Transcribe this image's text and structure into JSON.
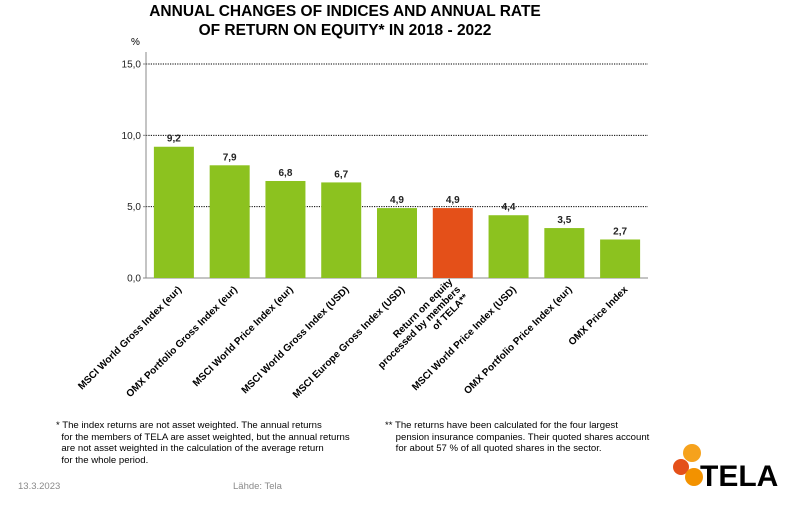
{
  "title_line1": "ANNUAL CHANGES OF INDICES AND ANNUAL RATE",
  "title_line2": "OF RETURN ON EQUITY* IN 2018 - 2022",
  "unit_label": "%",
  "chart_data": {
    "type": "bar",
    "title": "ANNUAL CHANGES OF INDICES AND ANNUAL RATE OF RETURN ON EQUITY* IN 2018 - 2022",
    "xlabel": "",
    "ylabel": "%",
    "ylim": [
      0,
      15
    ],
    "yticks": [
      "0,0",
      "5,0",
      "10,0",
      "15,0"
    ],
    "grid": true,
    "categories": [
      [
        "MSCI World Gross Index (eur)"
      ],
      [
        "OMX Portfolio Gross Index (eur)"
      ],
      [
        "MSCI World Price Index (eur)"
      ],
      [
        "MSCI World Gross Index (USD)"
      ],
      [
        "MSCI Europe Gross Index (USD)"
      ],
      [
        "Return on equity",
        "processed by members",
        "of TELA**"
      ],
      [
        "MSCI World Price Index (USD)"
      ],
      [
        "OMX Portfolio Price Index (eur)"
      ],
      [
        "OMX  Price Index"
      ]
    ],
    "values": [
      9.2,
      7.9,
      6.8,
      6.7,
      4.9,
      4.9,
      4.4,
      3.5,
      2.7
    ],
    "value_labels": [
      "9,2",
      "7,9",
      "6,8",
      "6,7",
      "4,9",
      "4,9",
      "4,4",
      "3,5",
      "2,7"
    ],
    "colors": [
      "#8cc21f",
      "#8cc21f",
      "#8cc21f",
      "#8cc21f",
      "#8cc21f",
      "#e45019",
      "#8cc21f",
      "#8cc21f",
      "#8cc21f"
    ]
  },
  "notes": {
    "left": "* The index returns are not asset weighted. The annual returns\n  for the members of TELA are asset weighted, but the annual returns\n  are not asset weighted in the calculation of the average return\n  for the whole period.",
    "right": "** The returns have been calculated for the four largest\n    pension insurance companies. Their quoted shares account\n    for about 57 % of all quoted shares in the sector."
  },
  "footer": {
    "date": "13.3.2023",
    "source": "Lähde: Tela"
  },
  "logo": {
    "text": "TELA",
    "colors": [
      "#f5a623",
      "#e45019",
      "#f39200"
    ]
  }
}
